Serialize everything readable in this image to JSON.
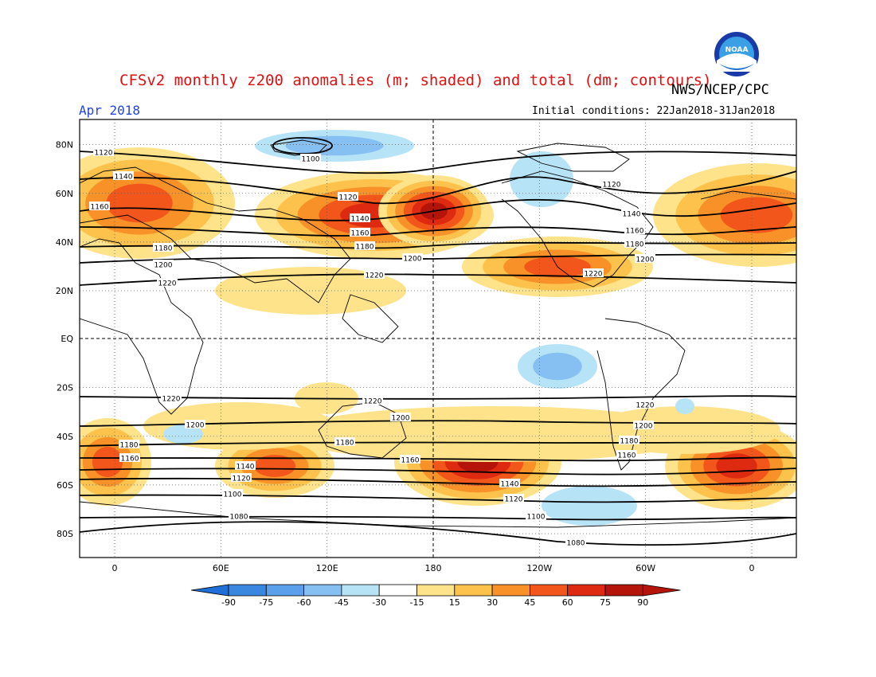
{
  "header": {
    "title": "CFSv2 monthly z200 anomalies (m; shaded) and total (dm; contours)",
    "agency": "NWS/NCEP/CPC",
    "month": "Apr 2018",
    "initial_conditions": "Initial conditions: 22Jan2018-31Jan2018"
  },
  "axes": {
    "lat_labels": [
      "80N",
      "60N",
      "40N",
      "20N",
      "EQ",
      "20S",
      "40S",
      "60S",
      "80S"
    ],
    "lon_labels": [
      "0",
      "60E",
      "120E",
      "180",
      "120W",
      "60W",
      "0"
    ]
  },
  "colorbar": {
    "labels": [
      "-90",
      "-75",
      "-60",
      "-45",
      "-30",
      "-15",
      "15",
      "30",
      "45",
      "60",
      "75",
      "90"
    ],
    "colors": [
      "#1f6fd6",
      "#3a87e0",
      "#5ba0ea",
      "#86bff2",
      "#b7e3f7",
      "#ffffff",
      "#ffe38a",
      "#fcc24c",
      "#f79128",
      "#f2561a",
      "#de2a10",
      "#b5140b"
    ]
  },
  "contour_labels": [
    "1080",
    "1100",
    "1120",
    "1140",
    "1160",
    "1180",
    "1200",
    "1220"
  ],
  "logo": {
    "text": "NOAA"
  }
}
